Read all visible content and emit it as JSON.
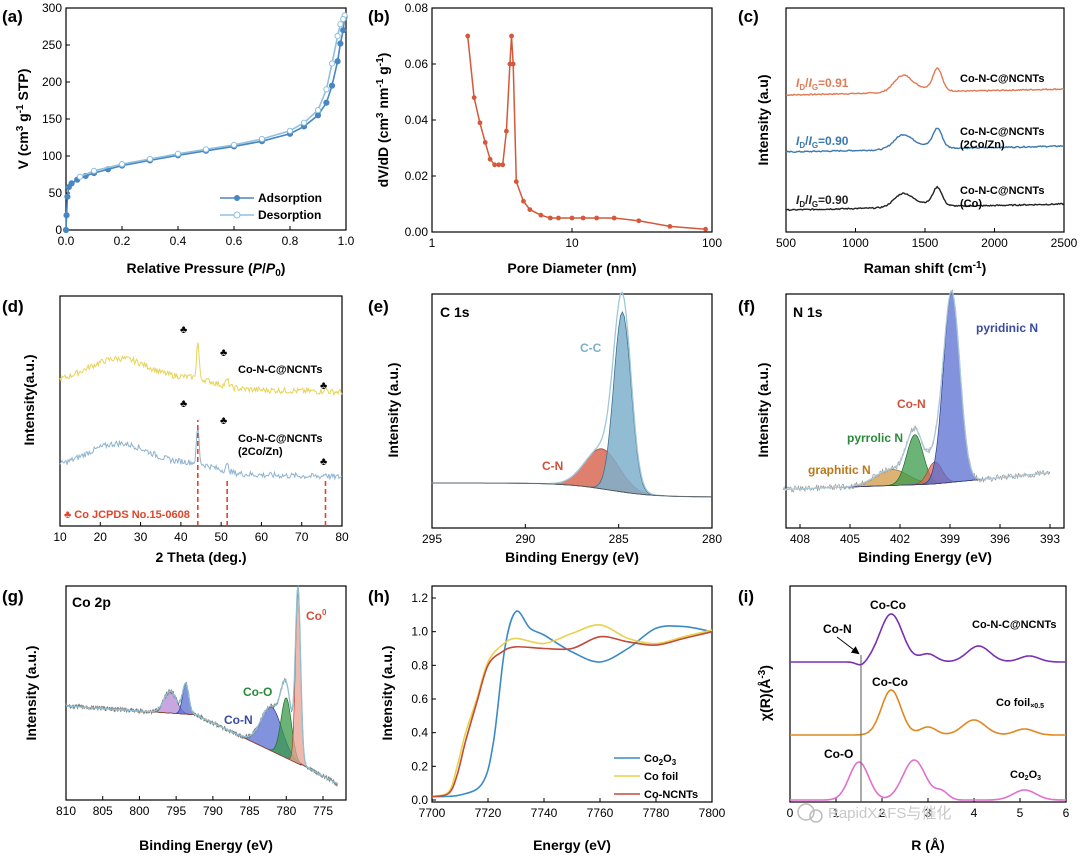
{
  "panels": {
    "a": {
      "label": "(a)",
      "xlabel": "Relative Pressure (P/P0)",
      "ylabel": "V (cm3 g-1 STP)",
      "xticks": [
        "0.0",
        "0.2",
        "0.4",
        "0.6",
        "0.8",
        "1.0"
      ],
      "yticks": [
        "0",
        "50",
        "100",
        "150",
        "200",
        "250",
        "300"
      ],
      "legend": [
        "Adsorption",
        "Desorption"
      ]
    },
    "b": {
      "label": "(b)",
      "xlabel": "Pore Diameter (nm)",
      "ylabel": "dV/dD (cm3 nm-1 g-1)",
      "xticks": [
        "1",
        "10",
        "100"
      ],
      "yticks": [
        "0.00",
        "0.02",
        "0.04",
        "0.06",
        "0.08"
      ]
    },
    "c": {
      "label": "(c)",
      "xlabel": "Raman shift (cm-1)",
      "ylabel": "Intensity (a.u)",
      "xticks": [
        "500",
        "1000",
        "1500",
        "2000",
        "2500"
      ],
      "ratios": [
        "ID/IG=0.91",
        "ID/IG=0.90",
        "ID/IG=0.90"
      ],
      "names": [
        "Co-N-C@NCNTs",
        "Co-N-C@NCNTs",
        "(2Co/Zn)",
        "Co-N-C@NCNTs",
        "(Co)"
      ]
    },
    "d": {
      "label": "(d)",
      "xlabel": "2 Theta (deg.)",
      "ylabel": "Intensity(a.u.)",
      "xticks": [
        "10",
        "20",
        "30",
        "40",
        "50",
        "60",
        "70",
        "80"
      ],
      "names": [
        "Co-N-C@NCNTs",
        "Co-N-C@NCNTs",
        "(2Co/Zn)"
      ],
      "ref": "♣ Co JCPDS No.15-0608",
      "club": "♣"
    },
    "e": {
      "label": "(e)",
      "title": "C 1s",
      "xlabel": "Binding Energy (eV)",
      "ylabel": "Intensity (a.u.)",
      "xticks": [
        "295",
        "290",
        "285",
        "280"
      ],
      "peaks": [
        "C-C",
        "C-N"
      ]
    },
    "f": {
      "label": "(f)",
      "title": "N 1s",
      "xlabel": "Binding Energy (eV)",
      "ylabel": "Intensity (a.u.)",
      "xticks": [
        "408",
        "405",
        "402",
        "399",
        "396",
        "393"
      ],
      "peaks": [
        "pyridinic N",
        "Co-N",
        "pyrrolic N",
        "graphitic N"
      ]
    },
    "g": {
      "label": "(g)",
      "title": "Co 2p",
      "xlabel": "Binding Energy (eV)",
      "ylabel": "Intensity (a.u.)",
      "xticks": [
        "810",
        "805",
        "800",
        "795",
        "790",
        "785",
        "780",
        "775"
      ],
      "peaks": [
        "Co0",
        "Co-O",
        "Co-N"
      ]
    },
    "h": {
      "label": "(h)",
      "xlabel": "Energy (eV)",
      "ylabel": "Intensity (a.u.)",
      "xticks": [
        "7700",
        "7720",
        "7740",
        "7760",
        "7780",
        "7800"
      ],
      "yticks": [
        "0.0",
        "0.2",
        "0.4",
        "0.6",
        "0.8",
        "1.0",
        "1.2"
      ],
      "legend": [
        "Co2O3",
        "Co foil",
        "Co-NCNTs"
      ]
    },
    "i": {
      "label": "(i)",
      "xlabel": "R (Å)",
      "ylabel": "χ(R)(Å-3)",
      "xticks": [
        "0",
        "1",
        "2",
        "3",
        "4",
        "5",
        "6"
      ],
      "annotations": [
        "Co-N",
        "Co-Co",
        "Co-Co",
        "Co-O"
      ],
      "names": [
        "Co-N-C@NCNTs",
        "Co foil",
        "×0.5",
        "Co2O3"
      ]
    }
  },
  "watermark": "RapidXAFS与催化",
  "colors": {
    "adsorption": "#4a86c0",
    "desorption": "#8fc0e0",
    "b_line": "#d4583a",
    "c_top": "#e07a55",
    "c_mid": "#3a78b0",
    "c_bot": "#222222",
    "d_top": "#e8d35a",
    "d_bot": "#8fb4d0",
    "d_ref": "#e0442a",
    "co2o3": "#3a8ac8",
    "cofoil": "#e8d24a",
    "conc": "#c24a3a",
    "i_top": "#7a30b0",
    "i_mid": "#e08820",
    "i_bot": "#e070d0"
  },
  "chart_data": [
    {
      "type": "line",
      "panel": "a",
      "title": "",
      "xlabel": "Relative Pressure (P/P0)",
      "ylabel": "V (cm3 g-1 STP)",
      "xlim": [
        0,
        1
      ],
      "ylim": [
        0,
        300
      ],
      "series": [
        {
          "name": "Adsorption",
          "x": [
            0.0,
            0.002,
            0.005,
            0.01,
            0.02,
            0.04,
            0.07,
            0.1,
            0.15,
            0.2,
            0.3,
            0.4,
            0.5,
            0.6,
            0.7,
            0.8,
            0.85,
            0.9,
            0.93,
            0.95,
            0.97,
            0.98,
            0.99,
            0.995
          ],
          "y": [
            0,
            20,
            45,
            58,
            63,
            68,
            73,
            77,
            82,
            87,
            94,
            101,
            107,
            113,
            120,
            130,
            140,
            155,
            172,
            195,
            228,
            252,
            270,
            288
          ]
        },
        {
          "name": "Desorption",
          "x": [
            0.995,
            0.99,
            0.98,
            0.97,
            0.95,
            0.93,
            0.9,
            0.85,
            0.8,
            0.7,
            0.6,
            0.5,
            0.4,
            0.3,
            0.2,
            0.1,
            0.05
          ],
          "y": [
            290,
            285,
            278,
            262,
            225,
            190,
            162,
            145,
            134,
            123,
            115,
            109,
            103,
            96,
            89,
            80,
            72
          ]
        }
      ]
    },
    {
      "type": "line",
      "panel": "b",
      "xlabel": "Pore Diameter (nm)",
      "ylabel": "dV/dD (cm3 nm-1 g-1)",
      "xscale": "log",
      "xlim": [
        1,
        100
      ],
      "ylim": [
        0,
        0.08
      ],
      "series": [
        {
          "name": "PSD",
          "x": [
            1.8,
            2.0,
            2.2,
            2.4,
            2.6,
            2.8,
            3.0,
            3.2,
            3.4,
            3.6,
            3.7,
            3.8,
            4.0,
            4.5,
            5,
            6,
            7,
            8,
            10,
            12,
            15,
            20,
            30,
            50,
            90
          ],
          "y": [
            0.07,
            0.048,
            0.039,
            0.032,
            0.026,
            0.024,
            0.024,
            0.024,
            0.036,
            0.06,
            0.07,
            0.06,
            0.018,
            0.011,
            0.008,
            0.006,
            0.005,
            0.005,
            0.005,
            0.005,
            0.005,
            0.005,
            0.004,
            0.002,
            0.001
          ]
        }
      ]
    },
    {
      "type": "line",
      "panel": "c",
      "xlabel": "Raman shift (cm-1)",
      "ylabel": "Intensity (a.u)",
      "xlim": [
        500,
        2500
      ],
      "series": [
        {
          "name": "Co-N-C@NCNTs",
          "offset": 2.0
        },
        {
          "name": "Co-N-C@NCNTs (2Co/Zn)",
          "offset": 1.0
        },
        {
          "name": "Co-N-C@NCNTs (Co)",
          "offset": 0.0
        }
      ]
    },
    {
      "type": "line",
      "panel": "d",
      "xlabel": "2 Theta (deg.)",
      "ylabel": "Intensity(a.u.)",
      "xlim": [
        10,
        80
      ],
      "series": [
        {
          "name": "Co-N-C@NCNTs"
        },
        {
          "name": "Co-N-C@NCNTs (2Co/Zn)"
        }
      ],
      "reference_peaks": [
        44.2,
        51.5,
        75.9
      ]
    },
    {
      "type": "area",
      "panel": "e",
      "xlabel": "Binding Energy (eV)",
      "xlim": [
        295,
        280
      ],
      "peaks": [
        {
          "name": "C-C",
          "center": 284.8
        },
        {
          "name": "C-N",
          "center": 285.9
        }
      ]
    },
    {
      "type": "area",
      "panel": "f",
      "xlabel": "Binding Energy (eV)",
      "xlim": [
        410,
        393
      ],
      "peaks": [
        {
          "name": "pyridinic N",
          "center": 398.9
        },
        {
          "name": "Co-N",
          "center": 399.9
        },
        {
          "name": "pyrrolic N",
          "center": 401.1
        },
        {
          "name": "graphitic N",
          "center": 402.5
        }
      ]
    },
    {
      "type": "area",
      "panel": "g",
      "xlabel": "Binding Energy (eV)",
      "xlim": [
        810,
        772
      ],
      "peaks": [
        {
          "name": "Co0",
          "center": 778.5
        },
        {
          "name": "Co-O",
          "center": 780.2
        },
        {
          "name": "Co-N",
          "center": 782.0
        }
      ]
    },
    {
      "type": "line",
      "panel": "h",
      "xlabel": "Energy (eV)",
      "ylabel": "Intensity (a.u.)",
      "xlim": [
        7700,
        7800
      ],
      "ylim": [
        -0.05,
        1.3
      ],
      "series": [
        {
          "name": "Co2O3",
          "x": [
            7700,
            7710,
            7718,
            7722,
            7726,
            7730,
            7735,
            7740,
            7750,
            7760,
            7770,
            7780,
            7790,
            7800
          ],
          "y": [
            0.02,
            0.03,
            0.1,
            0.35,
            0.9,
            1.12,
            1.02,
            0.98,
            0.88,
            0.82,
            0.9,
            1.02,
            1.03,
            1.0
          ]
        },
        {
          "name": "Co foil",
          "x": [
            7700,
            7706,
            7709,
            7712,
            7716,
            7720,
            7725,
            7730,
            7740,
            7750,
            7760,
            7770,
            7780,
            7790,
            7800
          ],
          "y": [
            0.02,
            0.05,
            0.2,
            0.4,
            0.6,
            0.82,
            0.92,
            0.96,
            0.93,
            0.99,
            1.04,
            0.96,
            0.93,
            0.97,
            1.01
          ]
        },
        {
          "name": "Co-NCNTs",
          "x": [
            7700,
            7706,
            7709,
            7712,
            7716,
            7720,
            7725,
            7730,
            7740,
            7750,
            7760,
            7770,
            7780,
            7790,
            7800
          ],
          "y": [
            0.02,
            0.04,
            0.15,
            0.35,
            0.58,
            0.8,
            0.88,
            0.91,
            0.9,
            0.9,
            0.97,
            0.94,
            0.92,
            0.96,
            1.0
          ]
        }
      ]
    },
    {
      "type": "line",
      "panel": "i",
      "xlabel": "R (Å)",
      "ylabel": "χ(R)(Å-3)",
      "xlim": [
        0,
        6
      ],
      "series": [
        {
          "name": "Co-N-C@NCNTs"
        },
        {
          "name": "Co foil ×0.5"
        },
        {
          "name": "Co2O3"
        }
      ]
    }
  ]
}
